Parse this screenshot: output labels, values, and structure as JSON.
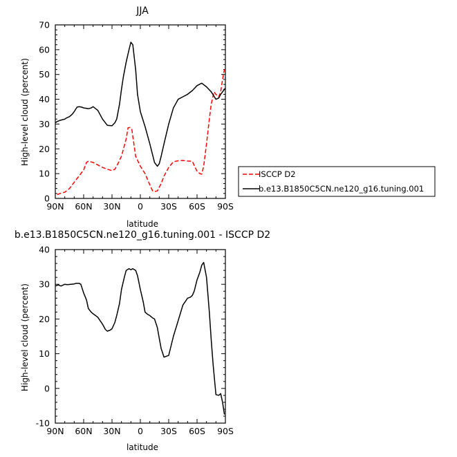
{
  "chart_data": [
    {
      "type": "line",
      "title": "JJA",
      "xlabel": "latitude",
      "ylabel": "High-level cloud (percent)",
      "xlim": [
        -90,
        90
      ],
      "ylim": [
        0,
        70
      ],
      "xtick_values": [
        -90,
        -60,
        -30,
        0,
        30,
        60,
        90
      ],
      "xtick_labels": [
        "90N",
        "60N",
        "30N",
        "0",
        "30S",
        "60S",
        "90S"
      ],
      "ytick_values": [
        0,
        10,
        20,
        30,
        40,
        50,
        60,
        70
      ],
      "ytick_labels": [
        "0",
        "10",
        "20",
        "30",
        "40",
        "50",
        "60",
        "70"
      ],
      "legend_position": "right",
      "series": [
        {
          "name": "ISCCP D2",
          "color": "#ff0000",
          "dash": "dashed",
          "x": [
            -88,
            -85,
            -80,
            -75,
            -70,
            -65,
            -60,
            -57,
            -55,
            -50,
            -45,
            -40,
            -35,
            -30,
            -27,
            -25,
            -20,
            -15,
            -13,
            -11,
            -9,
            -5,
            0,
            5,
            10,
            13,
            15,
            18,
            20,
            22,
            25,
            30,
            35,
            40,
            45,
            50,
            55,
            58,
            60,
            63,
            65,
            67,
            70,
            73,
            75,
            78,
            80,
            83,
            85,
            87,
            89
          ],
          "y": [
            1.5,
            2,
            2.5,
            4,
            6.5,
            9,
            11.5,
            14.5,
            15,
            14.5,
            13.5,
            12.5,
            11.8,
            11.2,
            11.8,
            13,
            17,
            24,
            28.5,
            28.6,
            27.8,
            17,
            13,
            10,
            5.5,
            3,
            2.8,
            3,
            4.5,
            6,
            9,
            12.5,
            14.8,
            15.2,
            15.3,
            15.1,
            15,
            12.5,
            11,
            10,
            9.8,
            13,
            22,
            32,
            38,
            43,
            42,
            41,
            43,
            48,
            52
          ]
        },
        {
          "name": "b.e13.B1850C5CN.ne120_g16.tuning.001",
          "color": "#000000",
          "dash": "solid",
          "x": [
            -90,
            -88,
            -85,
            -82,
            -80,
            -78,
            -75,
            -72,
            -70,
            -67,
            -65,
            -62,
            -60,
            -57,
            -55,
            -52,
            -50,
            -45,
            -40,
            -35,
            -30,
            -27,
            -25,
            -22,
            -20,
            -18,
            -15,
            -12,
            -10,
            -8,
            -5,
            -3,
            0,
            5,
            10,
            15,
            18,
            20,
            22,
            25,
            30,
            35,
            40,
            45,
            50,
            55,
            60,
            65,
            70,
            75,
            80,
            83,
            85,
            88,
            90
          ],
          "y": [
            30.5,
            31,
            31.5,
            31.8,
            32,
            32.5,
            33,
            34,
            35,
            36.8,
            37,
            36.8,
            36.5,
            36.3,
            36.2,
            36.5,
            37,
            35.5,
            32,
            29.5,
            29.3,
            30.5,
            32,
            38,
            44,
            49,
            55,
            60,
            63,
            62,
            52,
            42,
            35,
            29,
            22,
            14.5,
            13,
            14,
            17,
            22,
            30,
            36.5,
            40,
            41,
            42,
            43.5,
            45.5,
            46.5,
            45,
            43,
            40,
            40.5,
            42,
            43.5,
            44.5
          ]
        }
      ]
    },
    {
      "type": "line",
      "title": "b.e13.B1850C5CN.ne120_g16.tuning.001 - ISCCP D2",
      "xlabel": "latitude",
      "ylabel": "High-level cloud (percent)",
      "xlim": [
        -90,
        90
      ],
      "ylim": [
        -10,
        40
      ],
      "xtick_values": [
        -90,
        -60,
        -30,
        0,
        30,
        60,
        90
      ],
      "xtick_labels": [
        "90N",
        "60N",
        "30N",
        "0",
        "30S",
        "60S",
        "90S"
      ],
      "ytick_values": [
        -10,
        0,
        10,
        20,
        30,
        40
      ],
      "ytick_labels": [
        "-10",
        "0",
        "10",
        "20",
        "30",
        "40"
      ],
      "series": [
        {
          "color": "#000000",
          "dash": "solid",
          "x": [
            -90,
            -87,
            -84,
            -80,
            -77,
            -74,
            -70,
            -68,
            -65,
            -63,
            -60,
            -57,
            -55,
            -52,
            -50,
            -45,
            -40,
            -37,
            -35,
            -32,
            -30,
            -27,
            -25,
            -22,
            -20,
            -17,
            -15,
            -12,
            -10,
            -8,
            -5,
            -3,
            0,
            3,
            5,
            8,
            10,
            13,
            15,
            18,
            20,
            22,
            25,
            30,
            35,
            40,
            45,
            50,
            53,
            55,
            57,
            60,
            63,
            65,
            67,
            70,
            73,
            75,
            77,
            80,
            83,
            85,
            87,
            89
          ],
          "y": [
            29.5,
            29.8,
            29.5,
            30,
            29.9,
            30,
            30.1,
            30.3,
            30.3,
            30,
            27.5,
            25.5,
            23,
            22,
            21.5,
            20.5,
            18.5,
            17,
            16.5,
            16.8,
            17.2,
            19,
            21,
            24.5,
            28.5,
            32,
            34,
            34.5,
            34.2,
            34.5,
            34,
            32.5,
            28.5,
            25,
            22,
            21.3,
            21,
            20.3,
            20,
            17.5,
            14.5,
            11.5,
            9,
            9.5,
            15,
            19.5,
            24,
            26,
            26.3,
            26.8,
            28,
            31.3,
            33.5,
            35.5,
            36.3,
            32,
            22,
            14,
            7,
            -1.8,
            -2,
            -1.5,
            -4,
            -7.5
          ]
        }
      ]
    }
  ]
}
